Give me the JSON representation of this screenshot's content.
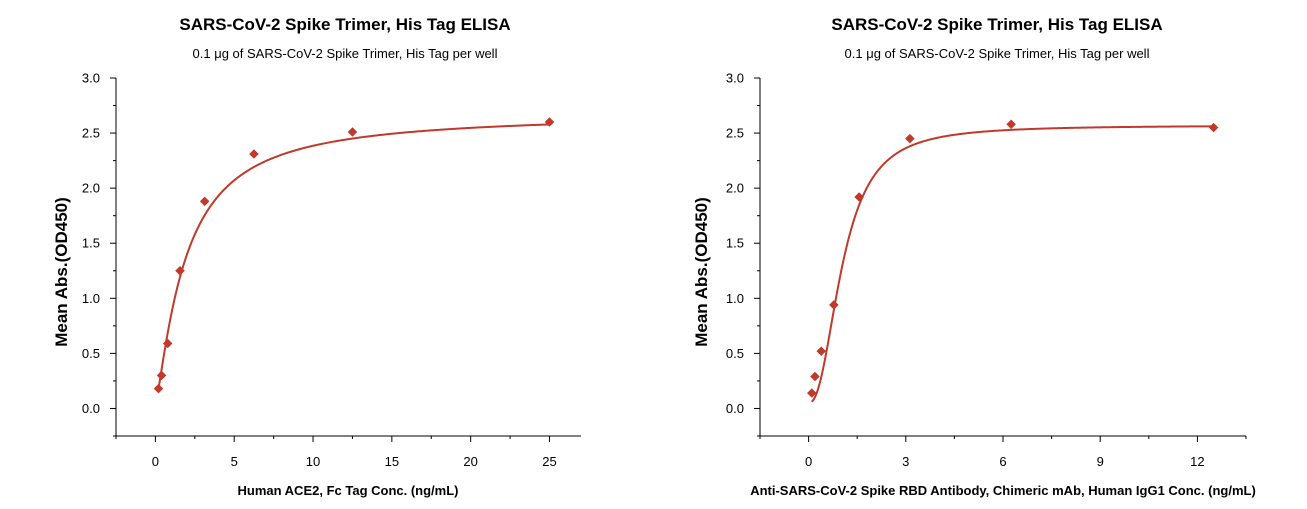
{
  "colors": {
    "series": "#c0392b",
    "axis": "#000000"
  },
  "chart_data": [
    {
      "type": "scatter",
      "title": "SARS-CoV-2 Spike Trimer, His Tag  ELISA",
      "subtitle": "0.1 μg of SARS-CoV-2 Spike Trimer, His Tag  per well",
      "xlabel": "Human ACE2, Fc Tag Conc. (ng/mL)",
      "ylabel": "Mean Abs.(OD450)",
      "xlim": [
        -2.5,
        27
      ],
      "ylim": [
        -0.25,
        3.0
      ],
      "xticks": [
        0,
        5,
        10,
        15,
        20,
        25
      ],
      "yticks": [
        0.0,
        0.5,
        1.0,
        1.5,
        2.0,
        2.5,
        3.0
      ],
      "marker": "diamond",
      "fit": {
        "model": "4PL",
        "bottom": 0.03,
        "top": 2.68,
        "ec50": 1.9,
        "hill": 1.25
      },
      "series": [
        {
          "x": [
            0.195,
            0.39,
            0.78,
            1.56,
            3.125,
            6.25,
            12.5,
            25
          ],
          "y": [
            0.18,
            0.3,
            0.59,
            1.25,
            1.88,
            2.31,
            2.51,
            2.6
          ]
        }
      ]
    },
    {
      "type": "scatter",
      "title": "SARS-CoV-2 Spike Trimer, His Tag  ELISA",
      "subtitle": "0.1 μg of SARS-CoV-2 Spike Trimer, His Tag  per well",
      "xlabel": "Anti-SARS-CoV-2 Spike RBD Antibody, Chimeric mAb, Human IgG1 Conc. (ng/mL)",
      "ylabel": "Mean Abs.(OD450)",
      "xlim": [
        -1.5,
        13.5
      ],
      "ylim": [
        -0.25,
        3.0
      ],
      "xticks": [
        0,
        3,
        6,
        9,
        12
      ],
      "yticks": [
        0.0,
        0.5,
        1.0,
        1.5,
        2.0,
        2.5,
        3.0
      ],
      "marker": "diamond",
      "fit": {
        "model": "4PL",
        "bottom": 0.05,
        "top": 2.57,
        "ec50": 1.05,
        "hill": 2.3
      },
      "series": [
        {
          "x": [
            0.098,
            0.195,
            0.39,
            0.78,
            1.56,
            3.125,
            6.25,
            12.5
          ],
          "y": [
            0.14,
            0.29,
            0.52,
            0.94,
            1.92,
            2.45,
            2.58,
            2.55
          ]
        }
      ]
    }
  ]
}
